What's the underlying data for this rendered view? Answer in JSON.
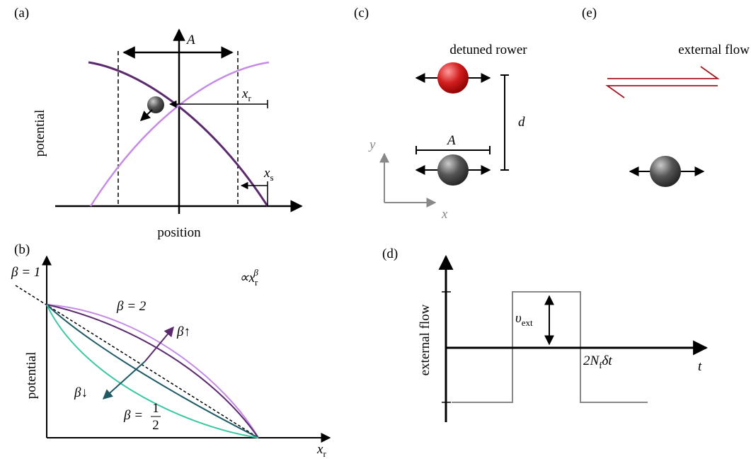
{
  "panels": {
    "a": {
      "label": "(a)",
      "amplitude": "A",
      "x_r": {
        "symbol": "x",
        "sub": "r"
      },
      "x_s": {
        "symbol": "x",
        "sub": "s"
      },
      "y_axis": "potential",
      "x_axis": "position"
    },
    "b": {
      "label": "(b)",
      "beta_1": "β = 1",
      "scaling": {
        "prefix": "∝x",
        "sub": "r",
        "sup": "β"
      },
      "beta_2": "β = 2",
      "beta_up": "β↑",
      "beta_down": "β↓",
      "beta_half": {
        "prefix": "β =",
        "num": "1",
        "den": "2"
      },
      "y_axis": "potential",
      "x_axis": {
        "symbol": "x",
        "sub": "r"
      }
    },
    "c": {
      "label": "(c)",
      "title": "detuned rower",
      "distance": "d",
      "amplitude": "A",
      "y_axis": "y",
      "x_axis": "x"
    },
    "e": {
      "label": "(e)",
      "title": "external flow"
    },
    "d": {
      "label": "(d)",
      "v_ext": {
        "symbol": "υ",
        "sub": "ext"
      },
      "period": {
        "prefix": "2N",
        "sub": "f",
        "suffix": "δt"
      },
      "x_axis": "t",
      "y_axis": "external flow"
    }
  }
}
